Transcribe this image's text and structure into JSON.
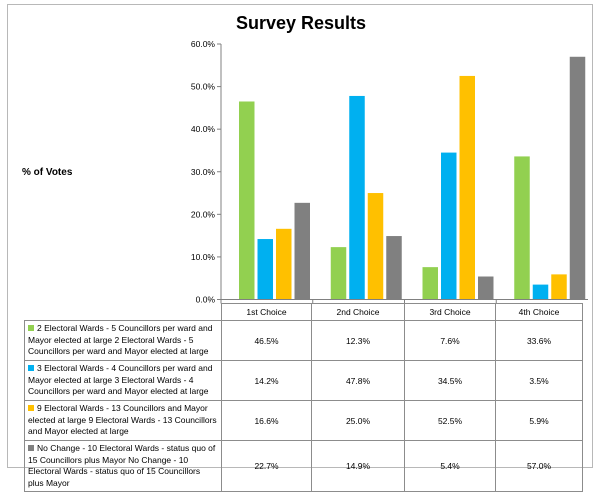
{
  "chart_data": {
    "type": "bar",
    "title": "Survey Results",
    "ylabel": "% of Votes",
    "xlabel": "",
    "ylim": [
      0,
      60
    ],
    "yticks": [
      "0.0%",
      "10.0%",
      "20.0%",
      "30.0%",
      "40.0%",
      "50.0%",
      "60.0%"
    ],
    "categories": [
      "1st Choice",
      "2nd Choice",
      "3rd Choice",
      "4th Choice"
    ],
    "legend_placement": "data-table",
    "grid": false,
    "series": [
      {
        "name": "2 Electoral Wards - 5 Councillors per ward and Mayor elected at large 2 Electoral Wards - 5 Councillors per ward and Mayor elected at large",
        "color": "#92d050",
        "values": [
          46.5,
          12.3,
          7.6,
          33.6
        ],
        "labels": [
          "46.5%",
          "12.3%",
          "7.6%",
          "33.6%"
        ]
      },
      {
        "name": "3 Electoral Wards - 4 Councillors per ward and Mayor elected at large 3 Electoral Wards - 4 Councillors per ward and Mayor elected at large",
        "color": "#00b0f0",
        "values": [
          14.2,
          47.8,
          34.5,
          3.5
        ],
        "labels": [
          "14.2%",
          "47.8%",
          "34.5%",
          "3.5%"
        ]
      },
      {
        "name": "9 Electoral Wards - 13 Councillors and Mayor elected at large 9 Electoral Wards - 13 Councillors and Mayor elected at large",
        "color": "#ffc000",
        "values": [
          16.6,
          25.0,
          52.5,
          5.9
        ],
        "labels": [
          "16.6%",
          "25.0%",
          "52.5%",
          "5.9%"
        ]
      },
      {
        "name": "No Change - 10 Electoral Wards - status quo of 15 Councillors plus Mayor No Change - 10 Electoral Wards - status quo of 15 Councillors plus Mayor",
        "color": "#808080",
        "values": [
          22.7,
          14.9,
          5.4,
          57.0
        ],
        "labels": [
          "22.7%",
          "14.9%",
          "5.4%",
          "57.0%"
        ]
      }
    ]
  }
}
